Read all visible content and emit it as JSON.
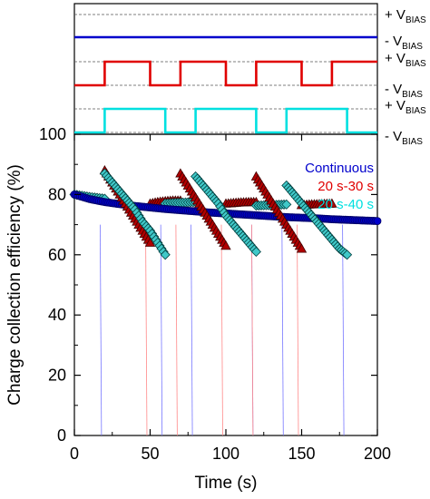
{
  "chart_data": [
    {
      "type": "line",
      "panel": "bias-waveforms",
      "high_label": {
        "prefix": "+ V",
        "sub": "BIAS"
      },
      "low_label": {
        "prefix": "- V",
        "sub": "BIAS"
      },
      "series": [
        {
          "name": "Continuous",
          "color": "#0000cc",
          "segments": [
            {
              "from": 0,
              "to": 200,
              "level": "low"
            }
          ]
        },
        {
          "name": "20 s-30 s",
          "color": "#e00000",
          "segments": [
            {
              "from": 0,
              "to": 20,
              "level": "low"
            },
            {
              "from": 20,
              "to": 50,
              "level": "high"
            },
            {
              "from": 50,
              "to": 70,
              "level": "low"
            },
            {
              "from": 70,
              "to": 100,
              "level": "high"
            },
            {
              "from": 100,
              "to": 120,
              "level": "low"
            },
            {
              "from": 120,
              "to": 150,
              "level": "high"
            },
            {
              "from": 150,
              "to": 170,
              "level": "low"
            },
            {
              "from": 170,
              "to": 200,
              "level": "high"
            }
          ]
        },
        {
          "name": "20 s-40 s",
          "color": "#00e0e0",
          "segments": [
            {
              "from": 0,
              "to": 20,
              "level": "low"
            },
            {
              "from": 20,
              "to": 60,
              "level": "high"
            },
            {
              "from": 60,
              "to": 80,
              "level": "low"
            },
            {
              "from": 80,
              "to": 120,
              "level": "high"
            },
            {
              "from": 120,
              "to": 140,
              "level": "low"
            },
            {
              "from": 140,
              "to": 180,
              "level": "high"
            },
            {
              "from": 180,
              "to": 200,
              "level": "low"
            }
          ]
        }
      ]
    },
    {
      "type": "scatter",
      "panel": "efficiency",
      "xlabel": "Time (s)",
      "ylabel": "Charge collection efficiency (%)",
      "xlim": [
        0,
        200
      ],
      "ylim": [
        0,
        100
      ],
      "xticks": [
        0,
        50,
        100,
        150,
        200
      ],
      "yticks": [
        0,
        20,
        40,
        60,
        80,
        100
      ],
      "legend_position": "top-right",
      "series": [
        {
          "name": "Continuous",
          "color": "#0000cc",
          "edge": "#000066",
          "marker": "circle",
          "x": [
            0,
            10,
            20,
            30,
            40,
            50,
            60,
            70,
            80,
            90,
            100,
            110,
            120,
            130,
            140,
            150,
            160,
            170,
            180,
            190,
            200
          ],
          "y": [
            80,
            78.5,
            77.5,
            76.8,
            76.2,
            75.7,
            75.2,
            74.8,
            74.4,
            74,
            73.7,
            73.4,
            73.1,
            72.8,
            72.5,
            72.3,
            72.1,
            71.8,
            71.6,
            71.4,
            71.2
          ]
        },
        {
          "name": "20 s-30 s",
          "color": "#b00000",
          "edge": "#400000",
          "marker": "triangle",
          "x": [
            20,
            25,
            30,
            35,
            40,
            45,
            50,
            70,
            75,
            80,
            85,
            90,
            95,
            100,
            120,
            125,
            130,
            135,
            140,
            145,
            150
          ],
          "y": [
            88,
            84,
            80,
            76,
            72,
            68,
            64,
            87,
            83,
            79,
            75,
            71,
            67,
            63,
            86,
            82,
            78,
            74,
            70,
            66,
            62
          ],
          "off_x": [
            50,
            55,
            60,
            65,
            70,
            100,
            105,
            110,
            115,
            120,
            150,
            155,
            160,
            165,
            170
          ],
          "off_y": [
            77,
            77.5,
            77.8,
            78,
            78,
            77,
            77.2,
            77.4,
            77.5,
            77.5,
            76.5,
            76.7,
            76.8,
            76.9,
            77
          ]
        },
        {
          "name": "20 s-40 s",
          "color": "#40c8c8",
          "edge": "#004040",
          "marker": "diamond",
          "x": [
            20,
            25,
            30,
            35,
            40,
            45,
            50,
            55,
            60,
            80,
            85,
            90,
            95,
            100,
            105,
            110,
            115,
            120,
            140,
            145,
            150,
            155,
            160,
            165,
            170,
            175,
            180
          ],
          "y": [
            87,
            84,
            81,
            78,
            75,
            71,
            68,
            64,
            60,
            86,
            83,
            80,
            77,
            73,
            70,
            67,
            64,
            61,
            83,
            80,
            77,
            74,
            71,
            68,
            65,
            62,
            60
          ],
          "off_x": [
            0,
            5,
            10,
            15,
            20,
            60,
            65,
            70,
            75,
            80,
            120,
            125,
            130,
            135,
            140
          ],
          "off_y": [
            80,
            79.6,
            79.2,
            78.9,
            78.6,
            77,
            77.2,
            77.3,
            77.4,
            77.5,
            76.3,
            76.4,
            76.5,
            76.6,
            76.7
          ]
        }
      ]
    }
  ]
}
